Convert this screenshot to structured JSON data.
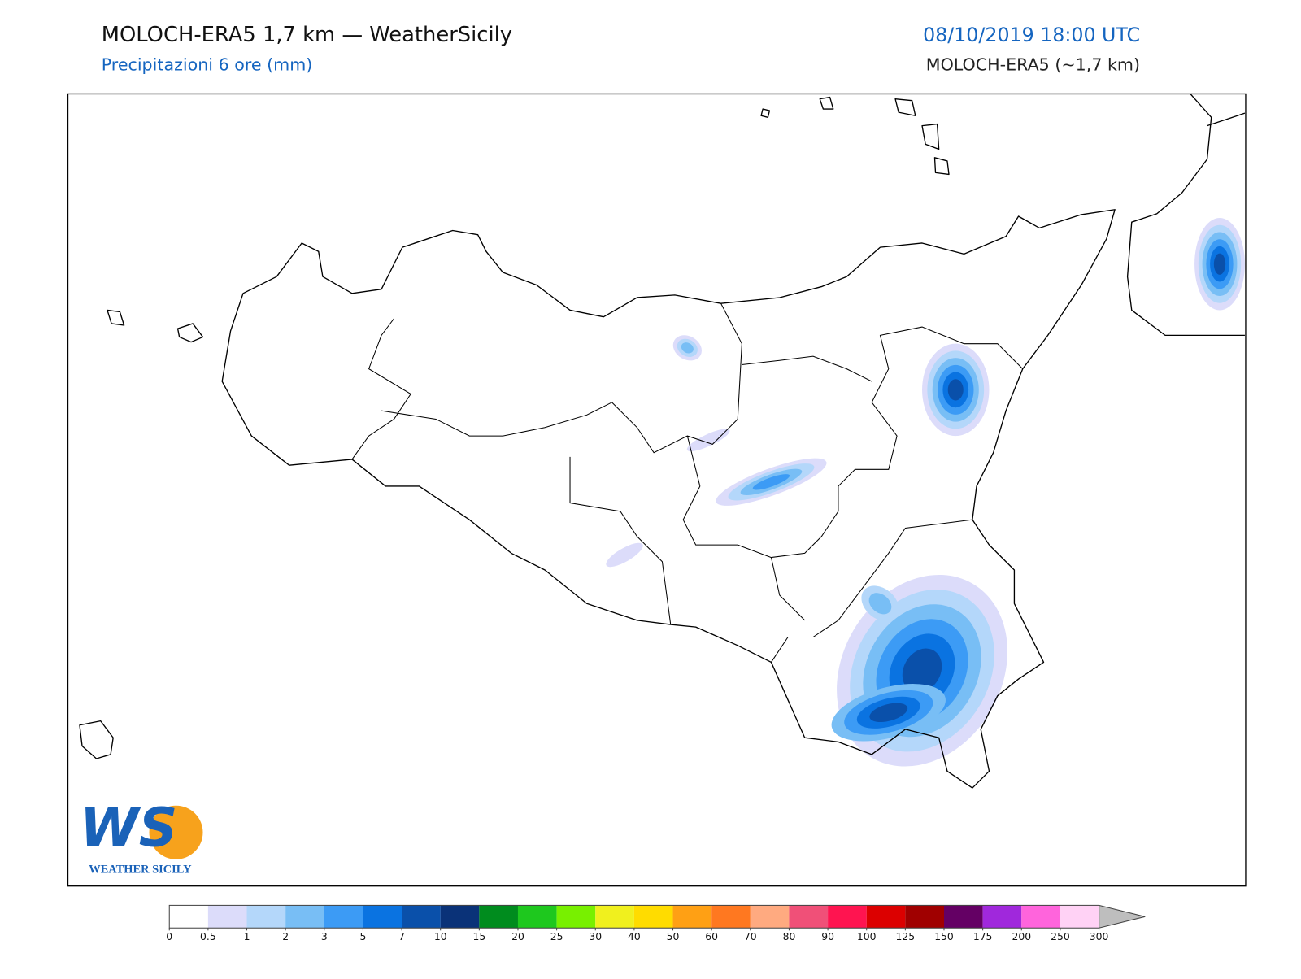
{
  "header": {
    "title": "MOLOCH-ERA5 1,7 km — WeatherSicily",
    "subtitle": "Precipitazioni 6 ore (mm)",
    "date": "08/10/2019 18:00 UTC",
    "model": "MOLOCH-ERA5 (~1,7 km)"
  },
  "logo": {
    "letters": "WS",
    "text": "WEATHER SICILY"
  },
  "legend": {
    "levels": [
      0,
      0.5,
      1,
      2,
      3,
      5,
      7,
      10,
      15,
      20,
      25,
      30,
      40,
      50,
      60,
      70,
      80,
      90,
      100,
      125,
      150,
      175,
      200,
      250,
      300
    ],
    "colors": [
      "#ffffff",
      "#dcdcfa",
      "#b4d7fa",
      "#78bef5",
      "#3c9bf5",
      "#0a73e1",
      "#0a50aa",
      "#0a3278",
      "#008c1e",
      "#1ec81e",
      "#78f000",
      "#f0f01e",
      "#ffdc00",
      "#ffa014",
      "#ff7820",
      "#ffaa80",
      "#f05078",
      "#ff1450",
      "#dc0000",
      "#a00000",
      "#640064",
      "#a028dc",
      "#ff64dc",
      "#ffd2f5"
    ],
    "extend_color": "#bebebe"
  }
}
